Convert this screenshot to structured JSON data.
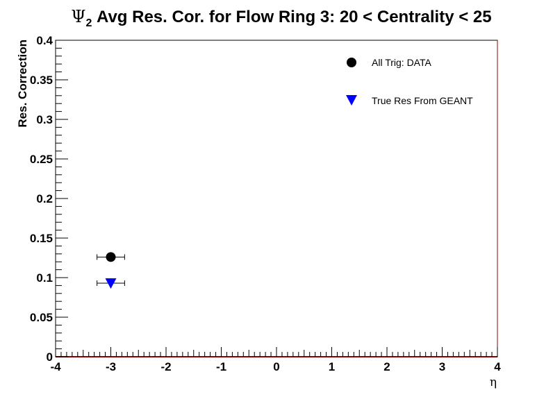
{
  "chart_data": {
    "type": "scatter",
    "title_symbol": "Ψ",
    "title_subscript": "2",
    "title_rest": " Avg Res. Cor. for Flow Ring 3: 20 < Centrality < 25",
    "xlabel": "η",
    "ylabel": "Res. Correction",
    "xlim": [
      -4,
      4
    ],
    "ylim": [
      0,
      0.4
    ],
    "x_ticks": [
      -4,
      -3,
      -2,
      -1,
      0,
      1,
      2,
      3,
      4
    ],
    "x_tick_labels": [
      "-4",
      "-3",
      "-2",
      "-1",
      "0",
      "1",
      "2",
      "3",
      "4"
    ],
    "y_ticks": [
      0,
      0.05,
      0.1,
      0.15,
      0.2,
      0.25,
      0.3,
      0.35,
      0.4
    ],
    "y_tick_labels": [
      "0",
      "0.05",
      "0.1",
      "0.15",
      "0.2",
      "0.25",
      "0.3",
      "0.35",
      "0.4"
    ],
    "legend_position": "top-right",
    "series": [
      {
        "name": "All Trig: DATA",
        "marker": "circle",
        "color": "#000000",
        "x": [
          -3.0
        ],
        "y": [
          0.126
        ],
        "xerr": [
          0.25
        ]
      },
      {
        "name": "True Res From GEANT",
        "marker": "triangle-down",
        "color": "#0000ff",
        "x": [
          -3.0
        ],
        "y": [
          0.093
        ],
        "xerr": [
          0.25
        ]
      }
    ]
  }
}
